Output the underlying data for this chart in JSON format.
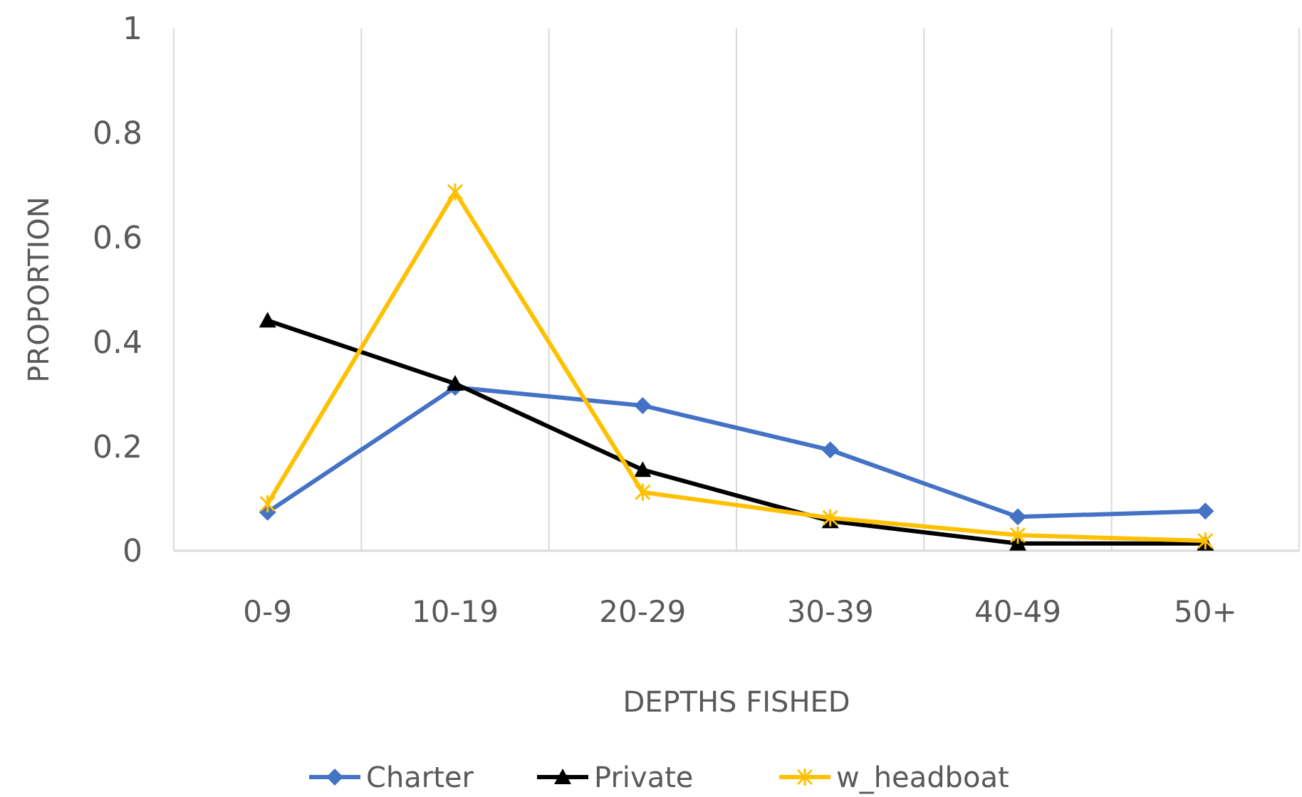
{
  "chart_data": {
    "type": "line",
    "xlabel": "DEPTHS FISHED",
    "ylabel": "PROPORTION",
    "categories": [
      "0-9",
      "10-19",
      "20-29",
      "30-39",
      "40-49",
      "50+"
    ],
    "series": [
      {
        "name": "Charter",
        "color": "#4472c4",
        "marker": "diamond",
        "values": [
          0.074,
          0.313,
          0.278,
          0.193,
          0.065,
          0.076
        ]
      },
      {
        "name": "Private",
        "color": "#000000",
        "marker": "triangle",
        "values": [
          0.441,
          0.32,
          0.155,
          0.057,
          0.014,
          0.014
        ]
      },
      {
        "name": "w_headboat",
        "color": "#ffc000",
        "marker": "cross",
        "values": [
          0.09,
          0.687,
          0.112,
          0.063,
          0.03,
          0.019
        ]
      }
    ],
    "ylim": [
      0,
      1
    ],
    "yticks": [
      0,
      0.2,
      0.4,
      0.6,
      0.8,
      1
    ],
    "grid": "x",
    "legend": "bottom"
  }
}
